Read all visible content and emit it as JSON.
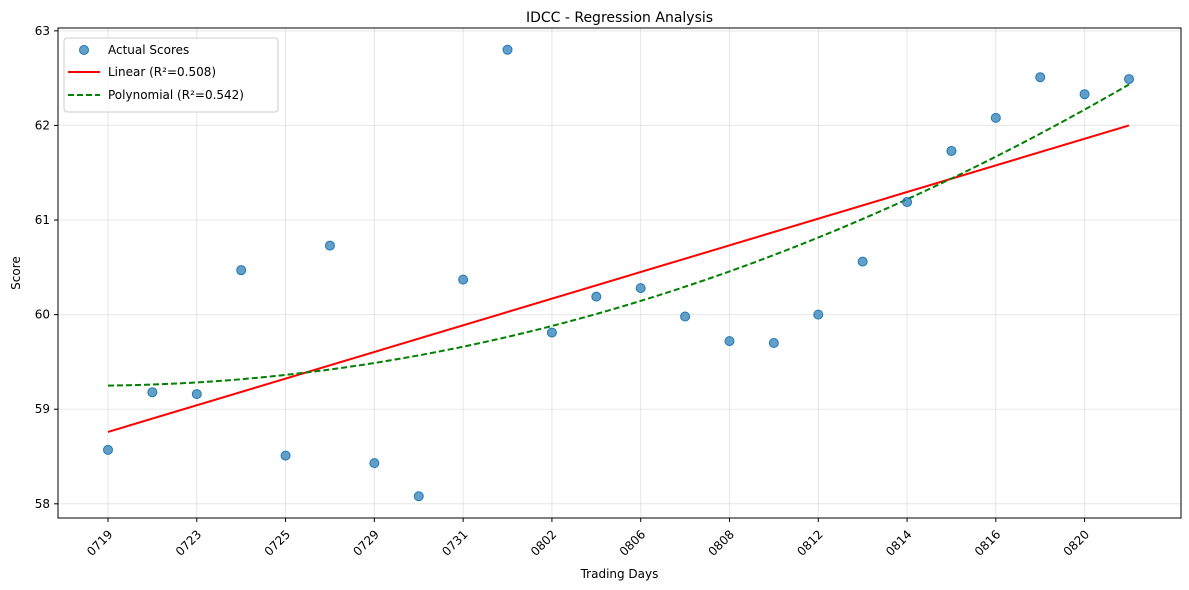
{
  "chart_data": {
    "type": "scatter",
    "title": "IDCC - Regression Analysis",
    "xlabel": "Trading Days",
    "ylabel": "Score",
    "x_tick_labels": [
      "0719",
      "0723",
      "0725",
      "0729",
      "0731",
      "0802",
      "0806",
      "0808",
      "0812",
      "0814",
      "0816",
      "0820"
    ],
    "y_ticks": [
      58,
      59,
      60,
      61,
      62,
      63
    ],
    "ylim": [
      57.85,
      63.03
    ],
    "grid": true,
    "legend_position": "top-left",
    "series": [
      {
        "name": "Actual Scores",
        "kind": "scatter",
        "color": "#1f77b4",
        "values": [
          58.57,
          59.18,
          59.16,
          60.47,
          58.51,
          60.73,
          58.43,
          58.08,
          60.37,
          62.8,
          59.81,
          60.19,
          60.28,
          59.98,
          59.72,
          59.7,
          60.0,
          60.56,
          61.19,
          61.73,
          62.08,
          62.51,
          62.33,
          62.49
        ]
      },
      {
        "name": "Linear (R²=0.508)",
        "kind": "line",
        "style": "solid",
        "color": "#ff0000",
        "values": [
          58.76,
          62.0
        ]
      },
      {
        "name": "Polynomial (R²=0.542)",
        "kind": "line",
        "style": "dashed",
        "color": "#008000",
        "coefficients": [
          59.25,
          0.005,
          0.0058
        ]
      }
    ]
  }
}
